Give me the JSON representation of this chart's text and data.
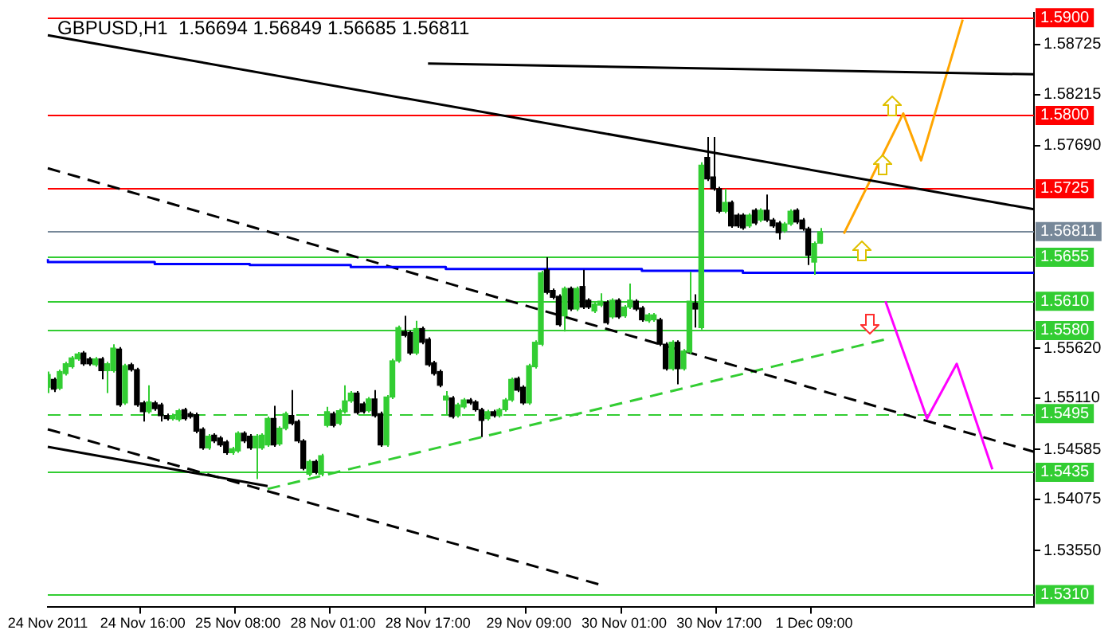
{
  "chart_data": {
    "type": "candlestick",
    "title": "GBPUSD,H1  1.56694 1.56849 1.56685 1.56811",
    "categories": [
      "24 Nov 2011",
      null,
      null,
      null,
      null,
      null,
      null,
      null,
      null,
      null,
      null,
      null,
      null,
      null,
      null,
      null,
      "24 Nov 16:00",
      null,
      null,
      null,
      null,
      null,
      null,
      null,
      null,
      null,
      null,
      null,
      null,
      null,
      null,
      null,
      "25 Nov 08:00",
      null,
      null,
      null,
      null,
      null,
      null,
      null,
      null,
      null,
      null,
      null,
      null,
      null,
      null,
      null,
      "28 Nov 01:00",
      null,
      null,
      null,
      null,
      null,
      null,
      null,
      null,
      null,
      null,
      null,
      null,
      null,
      null,
      null,
      "28 Nov 17:00",
      null,
      null,
      null,
      null,
      null,
      null,
      null,
      null,
      null,
      null,
      null,
      null,
      null,
      null,
      null,
      null,
      "29 Nov 09:00",
      null,
      null,
      null,
      null,
      null,
      null,
      null,
      null,
      null,
      null,
      null,
      null,
      null,
      null,
      null,
      "30 Nov 01:00",
      null,
      null,
      null,
      null,
      null,
      null,
      null,
      null,
      null,
      null,
      null,
      null,
      null,
      null,
      null,
      "30 Nov 17:00",
      null,
      null,
      null,
      null,
      null,
      null,
      null,
      null,
      null,
      null,
      null,
      null,
      null,
      null,
      null,
      "1 Dec 09:00",
      null,
      null,
      null,
      null,
      null,
      null,
      null,
      null,
      null,
      null,
      null,
      null,
      null,
      null,
      null,
      null,
      null,
      null,
      null,
      null,
      null,
      null,
      null,
      null,
      null,
      null,
      null,
      null,
      null,
      null,
      null,
      null,
      null,
      null,
      null,
      null,
      null
    ],
    "ohlc": [
      [
        1.5522,
        1.5538,
        1.5516,
        1.5535
      ],
      [
        1.553,
        1.5532,
        1.5517,
        1.552
      ],
      [
        1.5521,
        1.554,
        1.5519,
        1.5538
      ],
      [
        1.5536,
        1.5548,
        1.5534,
        1.5546
      ],
      [
        1.5543,
        1.5554,
        1.5541,
        1.5552
      ],
      [
        1.5551,
        1.5558,
        1.5549,
        1.5556
      ],
      [
        1.5557,
        1.5559,
        1.5544,
        1.5546
      ],
      [
        1.5551,
        1.5553,
        1.5544,
        1.5546
      ],
      [
        1.5545,
        1.5553,
        1.5543,
        1.5551
      ],
      [
        1.5551,
        1.5553,
        1.553,
        1.5539
      ],
      [
        1.5539,
        1.5548,
        1.5516,
        1.5546
      ],
      [
        1.5539,
        1.5566,
        1.5537,
        1.5562
      ],
      [
        1.5561,
        1.5563,
        1.5502,
        1.5504
      ],
      [
        1.5506,
        1.5546,
        1.5504,
        1.5544
      ],
      [
        1.5545,
        1.5547,
        1.5538,
        1.554
      ],
      [
        1.554,
        1.5542,
        1.5502,
        1.5504
      ],
      [
        1.5506,
        1.5508,
        1.5487,
        1.5497
      ],
      [
        1.5497,
        1.5524,
        1.5495,
        1.5507
      ],
      [
        1.5506,
        1.5508,
        1.5498,
        1.55
      ],
      [
        1.5504,
        1.5506,
        1.5487,
        1.5493
      ],
      [
        1.5493,
        1.5495,
        1.5488,
        1.549
      ],
      [
        1.549,
        1.5495,
        1.5488,
        1.5493
      ],
      [
        1.5489,
        1.55,
        1.5487,
        1.5498
      ],
      [
        1.5499,
        1.5501,
        1.5488,
        1.549
      ],
      [
        1.5495,
        1.5497,
        1.549,
        1.5492
      ],
      [
        1.5494,
        1.5496,
        1.5475,
        1.5477
      ],
      [
        1.5479,
        1.5481,
        1.5458,
        1.546
      ],
      [
        1.546,
        1.5474,
        1.5458,
        1.5472
      ],
      [
        1.5473,
        1.5475,
        1.5465,
        1.5467
      ],
      [
        1.547,
        1.5472,
        1.5461,
        1.5463
      ],
      [
        1.5466,
        1.5468,
        1.5453,
        1.5455
      ],
      [
        1.5455,
        1.5461,
        1.5453,
        1.5459
      ],
      [
        1.5457,
        1.5477,
        1.5455,
        1.5475
      ],
      [
        1.5475,
        1.5477,
        1.5465,
        1.5467
      ],
      [
        1.5472,
        1.5474,
        1.5458,
        1.546
      ],
      [
        1.546,
        1.5474,
        1.5428,
        1.5472
      ],
      [
        1.546,
        1.5475,
        1.5458,
        1.5473
      ],
      [
        1.5463,
        1.5492,
        1.5461,
        1.549
      ],
      [
        1.549,
        1.5503,
        1.5461,
        1.5463
      ],
      [
        1.5464,
        1.5482,
        1.5462,
        1.548
      ],
      [
        1.548,
        1.5497,
        1.5478,
        1.5495
      ],
      [
        1.5493,
        1.5519,
        1.5483,
        1.5485
      ],
      [
        1.5487,
        1.5489,
        1.5465,
        1.5467
      ],
      [
        1.5467,
        1.5469,
        1.5437,
        1.5439
      ],
      [
        1.5433,
        1.5448,
        1.5431,
        1.5446
      ],
      [
        1.5446,
        1.5448,
        1.5433,
        1.5435
      ],
      [
        1.5433,
        1.5454,
        1.5431,
        1.5452
      ],
      [
        1.5483,
        1.5502,
        1.5481,
        1.5497
      ],
      [
        1.5495,
        1.5497,
        1.5481,
        1.5483
      ],
      [
        1.5485,
        1.55,
        1.5483,
        1.5498
      ],
      [
        1.5497,
        1.5524,
        1.5495,
        1.5508
      ],
      [
        1.5508,
        1.5518,
        1.5506,
        1.5516
      ],
      [
        1.5516,
        1.5518,
        1.5494,
        1.5496
      ],
      [
        1.5505,
        1.5507,
        1.5495,
        1.5497
      ],
      [
        1.5498,
        1.5512,
        1.5496,
        1.551
      ],
      [
        1.551,
        1.5519,
        1.5491,
        1.5493
      ],
      [
        1.5495,
        1.5497,
        1.5461,
        1.5463
      ],
      [
        1.5463,
        1.5514,
        1.5461,
        1.5512
      ],
      [
        1.5512,
        1.5551,
        1.551,
        1.5549
      ],
      [
        1.5549,
        1.5585,
        1.5547,
        1.5583
      ],
      [
        1.5579,
        1.5595,
        1.5573,
        1.5575
      ],
      [
        1.5578,
        1.558,
        1.5555,
        1.5557
      ],
      [
        1.5557,
        1.559,
        1.5555,
        1.5582
      ],
      [
        1.5582,
        1.5584,
        1.5566,
        1.5568
      ],
      [
        1.5571,
        1.5573,
        1.5543,
        1.5545
      ],
      [
        1.5547,
        1.5549,
        1.5534,
        1.5536
      ],
      [
        1.5538,
        1.554,
        1.5522,
        1.5524
      ],
      [
        1.5509,
        1.5518,
        1.5493,
        1.5513
      ],
      [
        1.5511,
        1.5513,
        1.549,
        1.5492
      ],
      [
        1.5493,
        1.5506,
        1.5491,
        1.5504
      ],
      [
        1.5502,
        1.5511,
        1.55,
        1.5509
      ],
      [
        1.5509,
        1.5511,
        1.5504,
        1.5506
      ],
      [
        1.5507,
        1.5509,
        1.5497,
        1.5499
      ],
      [
        1.5499,
        1.5501,
        1.5471,
        1.5488
      ],
      [
        1.549,
        1.5499,
        1.5488,
        1.5497
      ],
      [
        1.5497,
        1.5499,
        1.5491,
        1.5493
      ],
      [
        1.5493,
        1.5501,
        1.5491,
        1.5499
      ],
      [
        1.5499,
        1.5511,
        1.5497,
        1.5509
      ],
      [
        1.5509,
        1.5532,
        1.5507,
        1.553
      ],
      [
        1.5531,
        1.5533,
        1.5517,
        1.5519
      ],
      [
        1.5522,
        1.5524,
        1.5504,
        1.5506
      ],
      [
        1.5506,
        1.5546,
        1.5504,
        1.5544
      ],
      [
        1.5543,
        1.557,
        1.5541,
        1.5568
      ],
      [
        1.5566,
        1.5641,
        1.5564,
        1.5639
      ],
      [
        1.5642,
        1.5655,
        1.5617,
        1.5619
      ],
      [
        1.5621,
        1.5623,
        1.5612,
        1.5614
      ],
      [
        1.5615,
        1.5617,
        1.5584,
        1.5586
      ],
      [
        1.5595,
        1.5625,
        1.5579,
        1.5623
      ],
      [
        1.5623,
        1.5625,
        1.56,
        1.5602
      ],
      [
        1.5602,
        1.5625,
        1.56,
        1.5623
      ],
      [
        1.5625,
        1.5642,
        1.5602,
        1.5604
      ],
      [
        1.5611,
        1.5613,
        1.5602,
        1.5604
      ],
      [
        1.56,
        1.5609,
        1.5598,
        1.5607
      ],
      [
        1.5606,
        1.5618,
        1.5604,
        1.561
      ],
      [
        1.5609,
        1.5611,
        1.5586,
        1.5588
      ],
      [
        1.5594,
        1.5613,
        1.5592,
        1.5611
      ],
      [
        1.5611,
        1.5613,
        1.5592,
        1.5594
      ],
      [
        1.5595,
        1.5606,
        1.5593,
        1.5604
      ],
      [
        1.5604,
        1.5628,
        1.5602,
        1.5611
      ],
      [
        1.561,
        1.5612,
        1.56,
        1.5602
      ],
      [
        1.5603,
        1.5605,
        1.5589,
        1.5591
      ],
      [
        1.559,
        1.5598,
        1.5588,
        1.5596
      ],
      [
        1.5591,
        1.5598,
        1.5589,
        1.5596
      ],
      [
        1.5591,
        1.5593,
        1.5564,
        1.5566
      ],
      [
        1.5566,
        1.5568,
        1.5539,
        1.5541
      ],
      [
        1.5541,
        1.557,
        1.5539,
        1.5568
      ],
      [
        1.5568,
        1.557,
        1.5525,
        1.5541
      ],
      [
        1.5541,
        1.5561,
        1.5539,
        1.5559
      ],
      [
        1.5558,
        1.564,
        1.5556,
        1.561
      ],
      [
        1.5608,
        1.5617,
        1.5583,
        1.5602
      ],
      [
        1.5583,
        1.5752,
        1.5581,
        1.5749
      ],
      [
        1.5757,
        1.5778,
        1.5733,
        1.5735
      ],
      [
        1.5737,
        1.5778,
        1.5723,
        1.5725
      ],
      [
        1.5725,
        1.5727,
        1.57,
        1.5702
      ],
      [
        1.5702,
        1.5725,
        1.57,
        1.5711
      ],
      [
        1.5711,
        1.5713,
        1.5685,
        1.5687
      ],
      [
        1.5698,
        1.57,
        1.5685,
        1.5687
      ],
      [
        1.5698,
        1.57,
        1.5683,
        1.5685
      ],
      [
        1.5687,
        1.57,
        1.5685,
        1.5698
      ],
      [
        1.5703,
        1.5705,
        1.5688,
        1.569
      ],
      [
        1.5693,
        1.5705,
        1.5691,
        1.5703
      ],
      [
        1.5703,
        1.5719,
        1.5691,
        1.5693
      ],
      [
        1.5693,
        1.5695,
        1.5685,
        1.5687
      ],
      [
        1.569,
        1.5692,
        1.5673,
        1.568
      ],
      [
        1.5682,
        1.5691,
        1.568,
        1.5689
      ],
      [
        1.5689,
        1.5704,
        1.5687,
        1.5702
      ],
      [
        1.5703,
        1.5705,
        1.5689,
        1.5691
      ],
      [
        1.5693,
        1.5695,
        1.5682,
        1.5684
      ],
      [
        1.5684,
        1.5686,
        1.5647,
        1.5657
      ],
      [
        1.565,
        1.5671,
        1.5637,
        1.5669
      ],
      [
        1.56694,
        1.56849,
        1.56685,
        1.56811
      ],
      null,
      null,
      null,
      null,
      null,
      null,
      null,
      null,
      null,
      null,
      null,
      null,
      null,
      null,
      null,
      null,
      null,
      null,
      null,
      null,
      null,
      null,
      null,
      null,
      null,
      null,
      null,
      null,
      null,
      null,
      null,
      null,
      null,
      null,
      null,
      null
    ],
    "series": [
      {
        "type": "step",
        "color": "#0000ff",
        "values": [
          1.5653,
          null,
          null,
          null,
          null,
          null,
          null,
          null,
          null,
          null,
          null,
          null,
          null,
          null,
          null,
          null,
          null,
          null,
          1.565,
          null,
          null,
          null,
          null,
          null,
          null,
          null,
          null,
          null,
          null,
          null,
          null,
          null,
          null,
          null,
          1.5648,
          null,
          null,
          null,
          null,
          null,
          null,
          null,
          null,
          null,
          null,
          null,
          null,
          null,
          null,
          null,
          null,
          1.5647,
          null,
          null,
          null,
          null,
          null,
          null,
          null,
          null,
          null,
          null,
          null,
          null,
          null,
          null,
          null,
          1.5645,
          null,
          null,
          null,
          null,
          null,
          null,
          null,
          null,
          null,
          null,
          null,
          null,
          null,
          null,
          null,
          null,
          null,
          null,
          null,
          null,
          null,
          null,
          null,
          null,
          null,
          null,
          null,
          null,
          null,
          null,
          null,
          null,
          1.5643,
          null,
          null,
          null,
          null,
          null,
          null,
          null,
          null,
          null,
          null,
          null,
          null,
          null,
          null,
          null,
          null,
          1.5641,
          null,
          null,
          null,
          null,
          null,
          null,
          null,
          null,
          null,
          null,
          null,
          null,
          null,
          null,
          null,
          1.5639,
          null,
          null,
          null,
          null,
          null,
          null,
          null,
          null,
          null,
          null,
          null,
          null,
          null,
          null,
          null,
          null,
          null,
          null,
          null,
          null,
          null,
          null,
          null,
          null,
          null,
          null,
          null,
          null,
          null,
          null,
          null,
          null,
          1.5639
        ]
      },
      {
        "type": "line",
        "color": "#000000",
        "values": [
          1.5882,
          null,
          null,
          null,
          null,
          null,
          null,
          null,
          null,
          null,
          null,
          null,
          null,
          null,
          null,
          null,
          null,
          null,
          null,
          null,
          null,
          null,
          null,
          null,
          null,
          null,
          null,
          null,
          null,
          null,
          null,
          null,
          null,
          null,
          null,
          null,
          null,
          null,
          null,
          null,
          null,
          null,
          null,
          null,
          null,
          null,
          null,
          null,
          null,
          null,
          null,
          null,
          null,
          null,
          null,
          null,
          null,
          null,
          null,
          null,
          null,
          null,
          null,
          null,
          null,
          null,
          null,
          null,
          null,
          null,
          null,
          null,
          null,
          null,
          null,
          null,
          null,
          null,
          null,
          null,
          null,
          null,
          null,
          null,
          null,
          null,
          null,
          null,
          null,
          null,
          null,
          null,
          null,
          null,
          null,
          null,
          null,
          null,
          null,
          null,
          null,
          null,
          null,
          null,
          null,
          null,
          null,
          null,
          null,
          null,
          null,
          null,
          null,
          null,
          null,
          null,
          null,
          null,
          null,
          null,
          null,
          null,
          null,
          null,
          null,
          null,
          null,
          null,
          null,
          null,
          null,
          null,
          null,
          null,
          null,
          null,
          null,
          null,
          null,
          null,
          null,
          null,
          null,
          null,
          null,
          null,
          null,
          null,
          null,
          null,
          null,
          null,
          null,
          null,
          null,
          null,
          null,
          null,
          null,
          null,
          null,
          null,
          null,
          null,
          null,
          null,
          1.5704
        ]
      },
      {
        "type": "line",
        "color": "#000000",
        "values": [
          null,
          null,
          null,
          null,
          null,
          null,
          null,
          null,
          null,
          null,
          null,
          null,
          null,
          null,
          null,
          null,
          null,
          null,
          null,
          null,
          null,
          null,
          null,
          null,
          null,
          null,
          null,
          null,
          null,
          null,
          null,
          null,
          null,
          null,
          null,
          null,
          null,
          null,
          null,
          null,
          null,
          null,
          null,
          null,
          null,
          null,
          null,
          null,
          null,
          null,
          null,
          null,
          null,
          null,
          null,
          null,
          null,
          null,
          null,
          null,
          null,
          null,
          null,
          null,
          1.5853,
          null,
          null,
          null,
          null,
          null,
          null,
          null,
          null,
          null,
          null,
          null,
          null,
          null,
          null,
          null,
          null,
          null,
          null,
          null,
          null,
          null,
          null,
          null,
          null,
          null,
          null,
          null,
          null,
          null,
          null,
          null,
          null,
          null,
          null,
          null,
          null,
          null,
          null,
          null,
          null,
          null,
          null,
          null,
          null,
          null,
          null,
          null,
          null,
          null,
          null,
          null,
          null,
          null,
          null,
          null,
          null,
          null,
          null,
          null,
          null,
          null,
          null,
          null,
          null,
          null,
          null,
          null,
          null,
          null,
          null,
          null,
          null,
          null,
          null,
          null,
          null,
          null,
          null,
          null,
          null,
          null,
          null,
          null,
          null,
          null,
          null,
          null,
          null,
          null,
          null,
          null,
          null,
          null,
          null,
          null,
          null,
          null,
          null,
          null,
          null,
          null,
          1.5842
        ]
      },
      {
        "type": "line",
        "color": "#000000",
        "values": [
          1.5461,
          null,
          null,
          null,
          null,
          null,
          null,
          null,
          null,
          null,
          null,
          null,
          null,
          null,
          null,
          null,
          null,
          null,
          null,
          null,
          null,
          null,
          null,
          null,
          null,
          null,
          null,
          null,
          null,
          null,
          null,
          null,
          null,
          null,
          null,
          null,
          null,
          1.5421,
          null,
          null,
          null,
          null,
          null,
          null,
          null,
          null,
          null,
          null,
          null,
          null,
          null,
          null,
          null,
          null,
          null,
          null,
          null,
          null,
          null,
          null,
          null,
          null,
          null,
          null,
          null,
          null,
          null,
          null,
          null,
          null,
          null,
          null,
          null,
          null,
          null,
          null,
          null,
          null,
          null,
          null,
          null,
          null,
          null,
          null,
          null,
          null,
          null,
          null,
          null,
          null,
          null,
          null,
          null,
          null,
          null,
          null,
          null,
          null,
          null,
          null,
          null,
          null,
          null,
          null,
          null,
          null,
          null,
          null,
          null,
          null,
          null,
          null,
          null,
          null,
          null,
          null,
          null,
          null,
          null,
          null,
          null,
          null,
          null,
          null,
          null,
          null,
          null,
          null,
          null,
          null,
          null,
          null,
          null,
          null,
          null,
          null,
          null,
          null,
          null,
          null,
          null,
          null,
          null,
          null,
          null,
          null,
          null,
          null,
          null,
          null,
          null,
          null,
          null,
          null,
          null,
          null,
          null,
          null,
          null,
          null,
          null,
          null,
          null,
          null,
          null,
          null,
          null
        ]
      },
      {
        "type": "line",
        "color": "#000000",
        "line_style": "dashed",
        "values": [
          1.5746,
          null,
          null,
          null,
          null,
          null,
          null,
          null,
          null,
          null,
          null,
          null,
          null,
          null,
          null,
          null,
          null,
          null,
          null,
          null,
          null,
          null,
          null,
          null,
          null,
          null,
          null,
          null,
          null,
          null,
          null,
          null,
          null,
          null,
          null,
          null,
          null,
          null,
          null,
          null,
          null,
          null,
          null,
          null,
          null,
          null,
          null,
          null,
          null,
          null,
          null,
          null,
          null,
          null,
          null,
          null,
          null,
          null,
          null,
          null,
          null,
          null,
          null,
          null,
          null,
          null,
          null,
          null,
          null,
          null,
          null,
          null,
          null,
          null,
          null,
          null,
          null,
          null,
          null,
          null,
          null,
          null,
          null,
          null,
          null,
          null,
          null,
          null,
          null,
          null,
          null,
          null,
          null,
          null,
          null,
          null,
          null,
          null,
          null,
          null,
          null,
          null,
          null,
          null,
          null,
          null,
          null,
          null,
          null,
          null,
          null,
          null,
          null,
          null,
          null,
          null,
          null,
          null,
          null,
          null,
          null,
          null,
          null,
          null,
          null,
          null,
          null,
          null,
          null,
          null,
          null,
          null,
          null,
          null,
          null,
          null,
          null,
          null,
          null,
          null,
          null,
          null,
          null,
          null,
          null,
          null,
          null,
          null,
          null,
          null,
          null,
          null,
          null,
          null,
          null,
          null,
          null,
          null,
          null,
          null,
          null,
          null,
          null,
          null,
          null,
          null,
          1.5456
        ]
      },
      {
        "type": "line",
        "color": "#000000",
        "line_style": "dashed",
        "values": [
          1.5479,
          null,
          null,
          null,
          null,
          null,
          null,
          null,
          null,
          null,
          null,
          null,
          null,
          null,
          null,
          null,
          null,
          null,
          null,
          null,
          null,
          null,
          null,
          null,
          null,
          null,
          null,
          null,
          null,
          null,
          null,
          null,
          null,
          null,
          null,
          null,
          null,
          null,
          null,
          null,
          null,
          null,
          null,
          null,
          null,
          null,
          null,
          null,
          null,
          null,
          null,
          null,
          null,
          null,
          null,
          null,
          null,
          null,
          null,
          null,
          null,
          null,
          null,
          null,
          null,
          null,
          null,
          null,
          null,
          null,
          null,
          null,
          null,
          null,
          null,
          null,
          null,
          null,
          null,
          null,
          null,
          null,
          null,
          null,
          null,
          null,
          null,
          null,
          null,
          null,
          null,
          null,
          null,
          1.532,
          null,
          null,
          null,
          null,
          null,
          null,
          null,
          null,
          null,
          null,
          null,
          null,
          null,
          null,
          null,
          null,
          null,
          null,
          null,
          null,
          null,
          null,
          null,
          null,
          null,
          null,
          null,
          null,
          null,
          null,
          null,
          null,
          null,
          null,
          null,
          null,
          null,
          null,
          null,
          null,
          null,
          null,
          null,
          null,
          null,
          null,
          null,
          null,
          null,
          null,
          null,
          null,
          null,
          null,
          null,
          null,
          null,
          null,
          null,
          null,
          null,
          null,
          null,
          null,
          null,
          null,
          null,
          null,
          null,
          null,
          null,
          null,
          null
        ]
      },
      {
        "type": "line",
        "color": "#32cd32",
        "line_style": "dashed",
        "values": [
          null,
          null,
          null,
          null,
          null,
          null,
          null,
          null,
          null,
          null,
          null,
          null,
          null,
          null,
          null,
          null,
          null,
          null,
          null,
          null,
          null,
          null,
          null,
          null,
          null,
          null,
          null,
          null,
          null,
          null,
          null,
          null,
          null,
          null,
          null,
          null,
          null,
          1.5418,
          null,
          null,
          null,
          null,
          null,
          null,
          null,
          null,
          null,
          null,
          null,
          null,
          null,
          null,
          null,
          null,
          null,
          null,
          null,
          null,
          null,
          null,
          null,
          null,
          null,
          null,
          null,
          null,
          null,
          null,
          null,
          null,
          null,
          null,
          null,
          null,
          null,
          null,
          null,
          null,
          null,
          null,
          null,
          null,
          null,
          null,
          null,
          null,
          null,
          null,
          null,
          null,
          null,
          null,
          null,
          null,
          null,
          null,
          null,
          null,
          null,
          null,
          null,
          null,
          null,
          null,
          null,
          null,
          null,
          null,
          null,
          null,
          null,
          null,
          null,
          null,
          null,
          null,
          null,
          null,
          null,
          null,
          null,
          null,
          null,
          null,
          null,
          null,
          null,
          null,
          null,
          null,
          null,
          null,
          null,
          null,
          null,
          null,
          null,
          null,
          null,
          null,
          null,
          1.5571,
          null,
          null,
          null,
          null,
          null,
          null,
          null,
          null,
          null,
          null,
          null,
          null,
          null,
          null,
          null,
          null,
          null,
          null,
          null,
          null,
          null,
          null,
          null,
          null,
          null
        ]
      },
      {
        "type": "line",
        "color": "#ffa500",
        "values": [
          null,
          null,
          null,
          null,
          null,
          null,
          null,
          null,
          null,
          null,
          null,
          null,
          null,
          null,
          null,
          null,
          null,
          null,
          null,
          null,
          null,
          null,
          null,
          null,
          null,
          null,
          null,
          null,
          null,
          null,
          null,
          null,
          null,
          null,
          null,
          null,
          null,
          null,
          null,
          null,
          null,
          null,
          null,
          null,
          null,
          null,
          null,
          null,
          null,
          null,
          null,
          null,
          null,
          null,
          null,
          null,
          null,
          null,
          null,
          null,
          null,
          null,
          null,
          null,
          null,
          null,
          null,
          null,
          null,
          null,
          null,
          null,
          null,
          null,
          null,
          null,
          null,
          null,
          null,
          null,
          null,
          null,
          null,
          null,
          null,
          null,
          null,
          null,
          null,
          null,
          null,
          null,
          null,
          null,
          null,
          null,
          null,
          null,
          null,
          null,
          null,
          null,
          null,
          null,
          null,
          null,
          null,
          null,
          null,
          null,
          null,
          null,
          null,
          null,
          null,
          null,
          null,
          null,
          null,
          null,
          null,
          null,
          null,
          null,
          null,
          null,
          null,
          null,
          null,
          null,
          null,
          null,
          null,
          null,
          1.5679,
          null,
          null,
          null,
          null,
          null,
          null,
          null,
          null,
          null,
          1.5802,
          null,
          null,
          1.5754,
          null,
          null,
          null,
          null,
          null,
          null,
          1.5898,
          null,
          null,
          null,
          null,
          null,
          null,
          null,
          null,
          null,
          null,
          null,
          null
        ]
      },
      {
        "type": "line",
        "color": "#ff00ff",
        "values": [
          null,
          null,
          null,
          null,
          null,
          null,
          null,
          null,
          null,
          null,
          null,
          null,
          null,
          null,
          null,
          null,
          null,
          null,
          null,
          null,
          null,
          null,
          null,
          null,
          null,
          null,
          null,
          null,
          null,
          null,
          null,
          null,
          null,
          null,
          null,
          null,
          null,
          null,
          null,
          null,
          null,
          null,
          null,
          null,
          null,
          null,
          null,
          null,
          null,
          null,
          null,
          null,
          null,
          null,
          null,
          null,
          null,
          null,
          null,
          null,
          null,
          null,
          null,
          null,
          null,
          null,
          null,
          null,
          null,
          null,
          null,
          null,
          null,
          null,
          null,
          null,
          null,
          null,
          null,
          null,
          null,
          null,
          null,
          null,
          null,
          null,
          null,
          null,
          null,
          null,
          null,
          null,
          null,
          null,
          null,
          null,
          null,
          null,
          null,
          null,
          null,
          null,
          null,
          null,
          null,
          null,
          null,
          null,
          null,
          null,
          null,
          null,
          null,
          null,
          null,
          null,
          null,
          null,
          null,
          null,
          null,
          null,
          null,
          null,
          null,
          null,
          null,
          null,
          null,
          null,
          null,
          null,
          null,
          null,
          null,
          null,
          null,
          null,
          null,
          null,
          null,
          1.561,
          null,
          null,
          null,
          null,
          null,
          null,
          1.549,
          null,
          null,
          null,
          null,
          1.5546,
          null,
          null,
          null,
          null,
          null,
          1.5438,
          null,
          null,
          null,
          null,
          null,
          null,
          null
        ]
      }
    ],
    "ref_lines": [
      {
        "axis": "y",
        "value": 1.59,
        "label": "1.5900",
        "color": "#ff0000"
      },
      {
        "axis": "y",
        "value": 1.58,
        "label": "1.5800",
        "color": "#ff0000"
      },
      {
        "axis": "y",
        "value": 1.5725,
        "label": "1.5725",
        "color": "#ff0000"
      },
      {
        "axis": "y",
        "value": 1.56811,
        "label": "1.56811",
        "color": "#778899"
      },
      {
        "axis": "y",
        "value": 1.5655,
        "label": "1.5655",
        "color": "#32cd32"
      },
      {
        "axis": "y",
        "value": 1.561,
        "label": "1.5610",
        "color": "#32cd32"
      },
      {
        "axis": "y",
        "value": 1.558,
        "label": "1.5580",
        "color": "#32cd32"
      },
      {
        "axis": "y",
        "value": 1.5495,
        "label": "1.5495",
        "color": "#32cd32",
        "line_style": "dashed"
      },
      {
        "axis": "y",
        "value": 1.5435,
        "label": "1.5435",
        "color": "#32cd32"
      },
      {
        "axis": "y",
        "value": 1.531,
        "label": "1.5310",
        "color": "#32cd32"
      }
    ],
    "ylim": [
      1.5297,
      1.5905
    ],
    "yticks": [
      1.58725,
      1.58215,
      {
        "value": 1.5769,
        "label": "1.57690"
      },
      {
        "value": 1.5562,
        "label": "1.55620"
      },
      {
        "value": 1.5511,
        "label": "1.55110"
      },
      1.54585,
      1.54075,
      {
        "value": 1.5355,
        "label": "1.53550"
      }
    ],
    "grid": false,
    "legend": false
  }
}
